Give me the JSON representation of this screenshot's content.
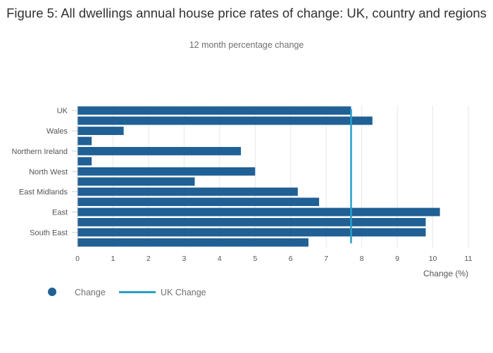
{
  "title": "Figure 5: All dwellings annual house price rates of change: UK, country and regions",
  "subtitle": "12 month percentage change",
  "colors": {
    "bar": "#206095",
    "reference_line": "#27a0cc",
    "grid": "#e6e6e6",
    "text": "#707071"
  },
  "legend": {
    "series_label": "Change",
    "line_label": "UK Change",
    "placement": "bottom-left"
  },
  "chart_data": {
    "type": "bar",
    "orientation": "horizontal",
    "categories": [
      "UK",
      "",
      "Wales",
      "",
      "Northern Ireland",
      "",
      "North West",
      "",
      "East Midlands",
      "",
      "East",
      "",
      "South East",
      ""
    ],
    "values": [
      7.7,
      8.3,
      1.3,
      0.4,
      4.6,
      0.4,
      5.0,
      3.3,
      6.2,
      6.8,
      10.2,
      9.8,
      9.8,
      6.5
    ],
    "series": [
      {
        "name": "Change",
        "values": [
          7.7,
          8.3,
          1.3,
          0.4,
          4.6,
          0.4,
          5.0,
          3.3,
          6.2,
          6.8,
          10.2,
          9.8,
          9.8,
          6.5
        ]
      }
    ],
    "reference_line": {
      "name": "UK Change",
      "value": 7.7
    },
    "xlabel": "Change (%)",
    "ylabel": "",
    "xlim": [
      0,
      11
    ],
    "xticks": [
      0,
      1,
      2,
      3,
      4,
      5,
      6,
      7,
      8,
      9,
      10,
      11
    ],
    "grid": true
  }
}
